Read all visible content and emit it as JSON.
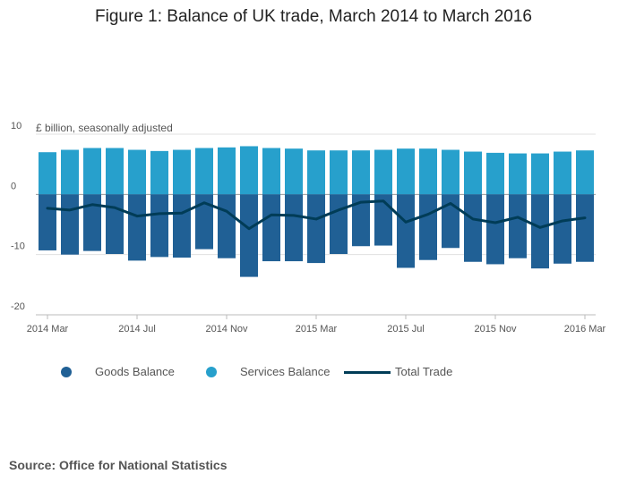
{
  "figure_title": "Figure 1: Balance of UK trade, March 2014 to March 2016",
  "source": "Source: Office for National Statistics",
  "colors": {
    "goods": "#206095",
    "services": "#27a0cc",
    "total": "#003c57",
    "grid": "#e0e0e0",
    "axis": "#bbbbbb"
  },
  "chart_data": {
    "type": "bar",
    "title": "Figure 1: Balance of UK trade, March 2014 to March 2016",
    "unit_label": "£ billion, seasonally adjusted",
    "ylim": [
      -20,
      10
    ],
    "yticks": [
      10,
      0,
      -10,
      -20
    ],
    "grid": true,
    "legend_position": "bottom",
    "categories": [
      "2014 Mar",
      "2014 Apr",
      "2014 May",
      "2014 Jun",
      "2014 Jul",
      "2014 Aug",
      "2014 Sep",
      "2014 Oct",
      "2014 Nov",
      "2014 Dec",
      "2015 Jan",
      "2015 Feb",
      "2015 Mar",
      "2015 Apr",
      "2015 May",
      "2015 Jun",
      "2015 Jul",
      "2015 Aug",
      "2015 Sep",
      "2015 Oct",
      "2015 Nov",
      "2015 Dec",
      "2016 Jan",
      "2016 Feb",
      "2016 Mar"
    ],
    "xtick_labels": [
      {
        "index": 0,
        "label": "2014 Mar"
      },
      {
        "index": 4,
        "label": "2014 Jul"
      },
      {
        "index": 8,
        "label": "2014 Nov"
      },
      {
        "index": 12,
        "label": "2015 Mar"
      },
      {
        "index": 16,
        "label": "2015 Jul"
      },
      {
        "index": 20,
        "label": "2015 Nov"
      },
      {
        "index": 24,
        "label": "2016 Mar"
      }
    ],
    "series": [
      {
        "name": "Goods Balance",
        "kind": "bar",
        "values": [
          -9.3,
          -10.0,
          -9.4,
          -9.9,
          -11.0,
          -10.4,
          -10.5,
          -9.1,
          -10.6,
          -13.7,
          -11.1,
          -11.1,
          -11.4,
          -9.9,
          -8.6,
          -8.5,
          -12.2,
          -10.9,
          -8.9,
          -11.2,
          -11.6,
          -10.6,
          -12.3,
          -11.5,
          -11.2
        ]
      },
      {
        "name": "Services Balance",
        "kind": "bar",
        "values": [
          7.0,
          7.4,
          7.7,
          7.7,
          7.4,
          7.2,
          7.4,
          7.7,
          7.8,
          8.0,
          7.7,
          7.6,
          7.3,
          7.3,
          7.3,
          7.4,
          7.6,
          7.6,
          7.4,
          7.1,
          6.9,
          6.8,
          6.8,
          7.1,
          7.3
        ]
      },
      {
        "name": "Total Trade",
        "kind": "line",
        "values": [
          -2.3,
          -2.6,
          -1.7,
          -2.2,
          -3.6,
          -3.2,
          -3.1,
          -1.4,
          -2.8,
          -5.7,
          -3.4,
          -3.5,
          -4.1,
          -2.6,
          -1.3,
          -1.1,
          -4.6,
          -3.3,
          -1.5,
          -4.1,
          -4.7,
          -3.8,
          -5.5,
          -4.4,
          -3.9
        ]
      }
    ]
  }
}
